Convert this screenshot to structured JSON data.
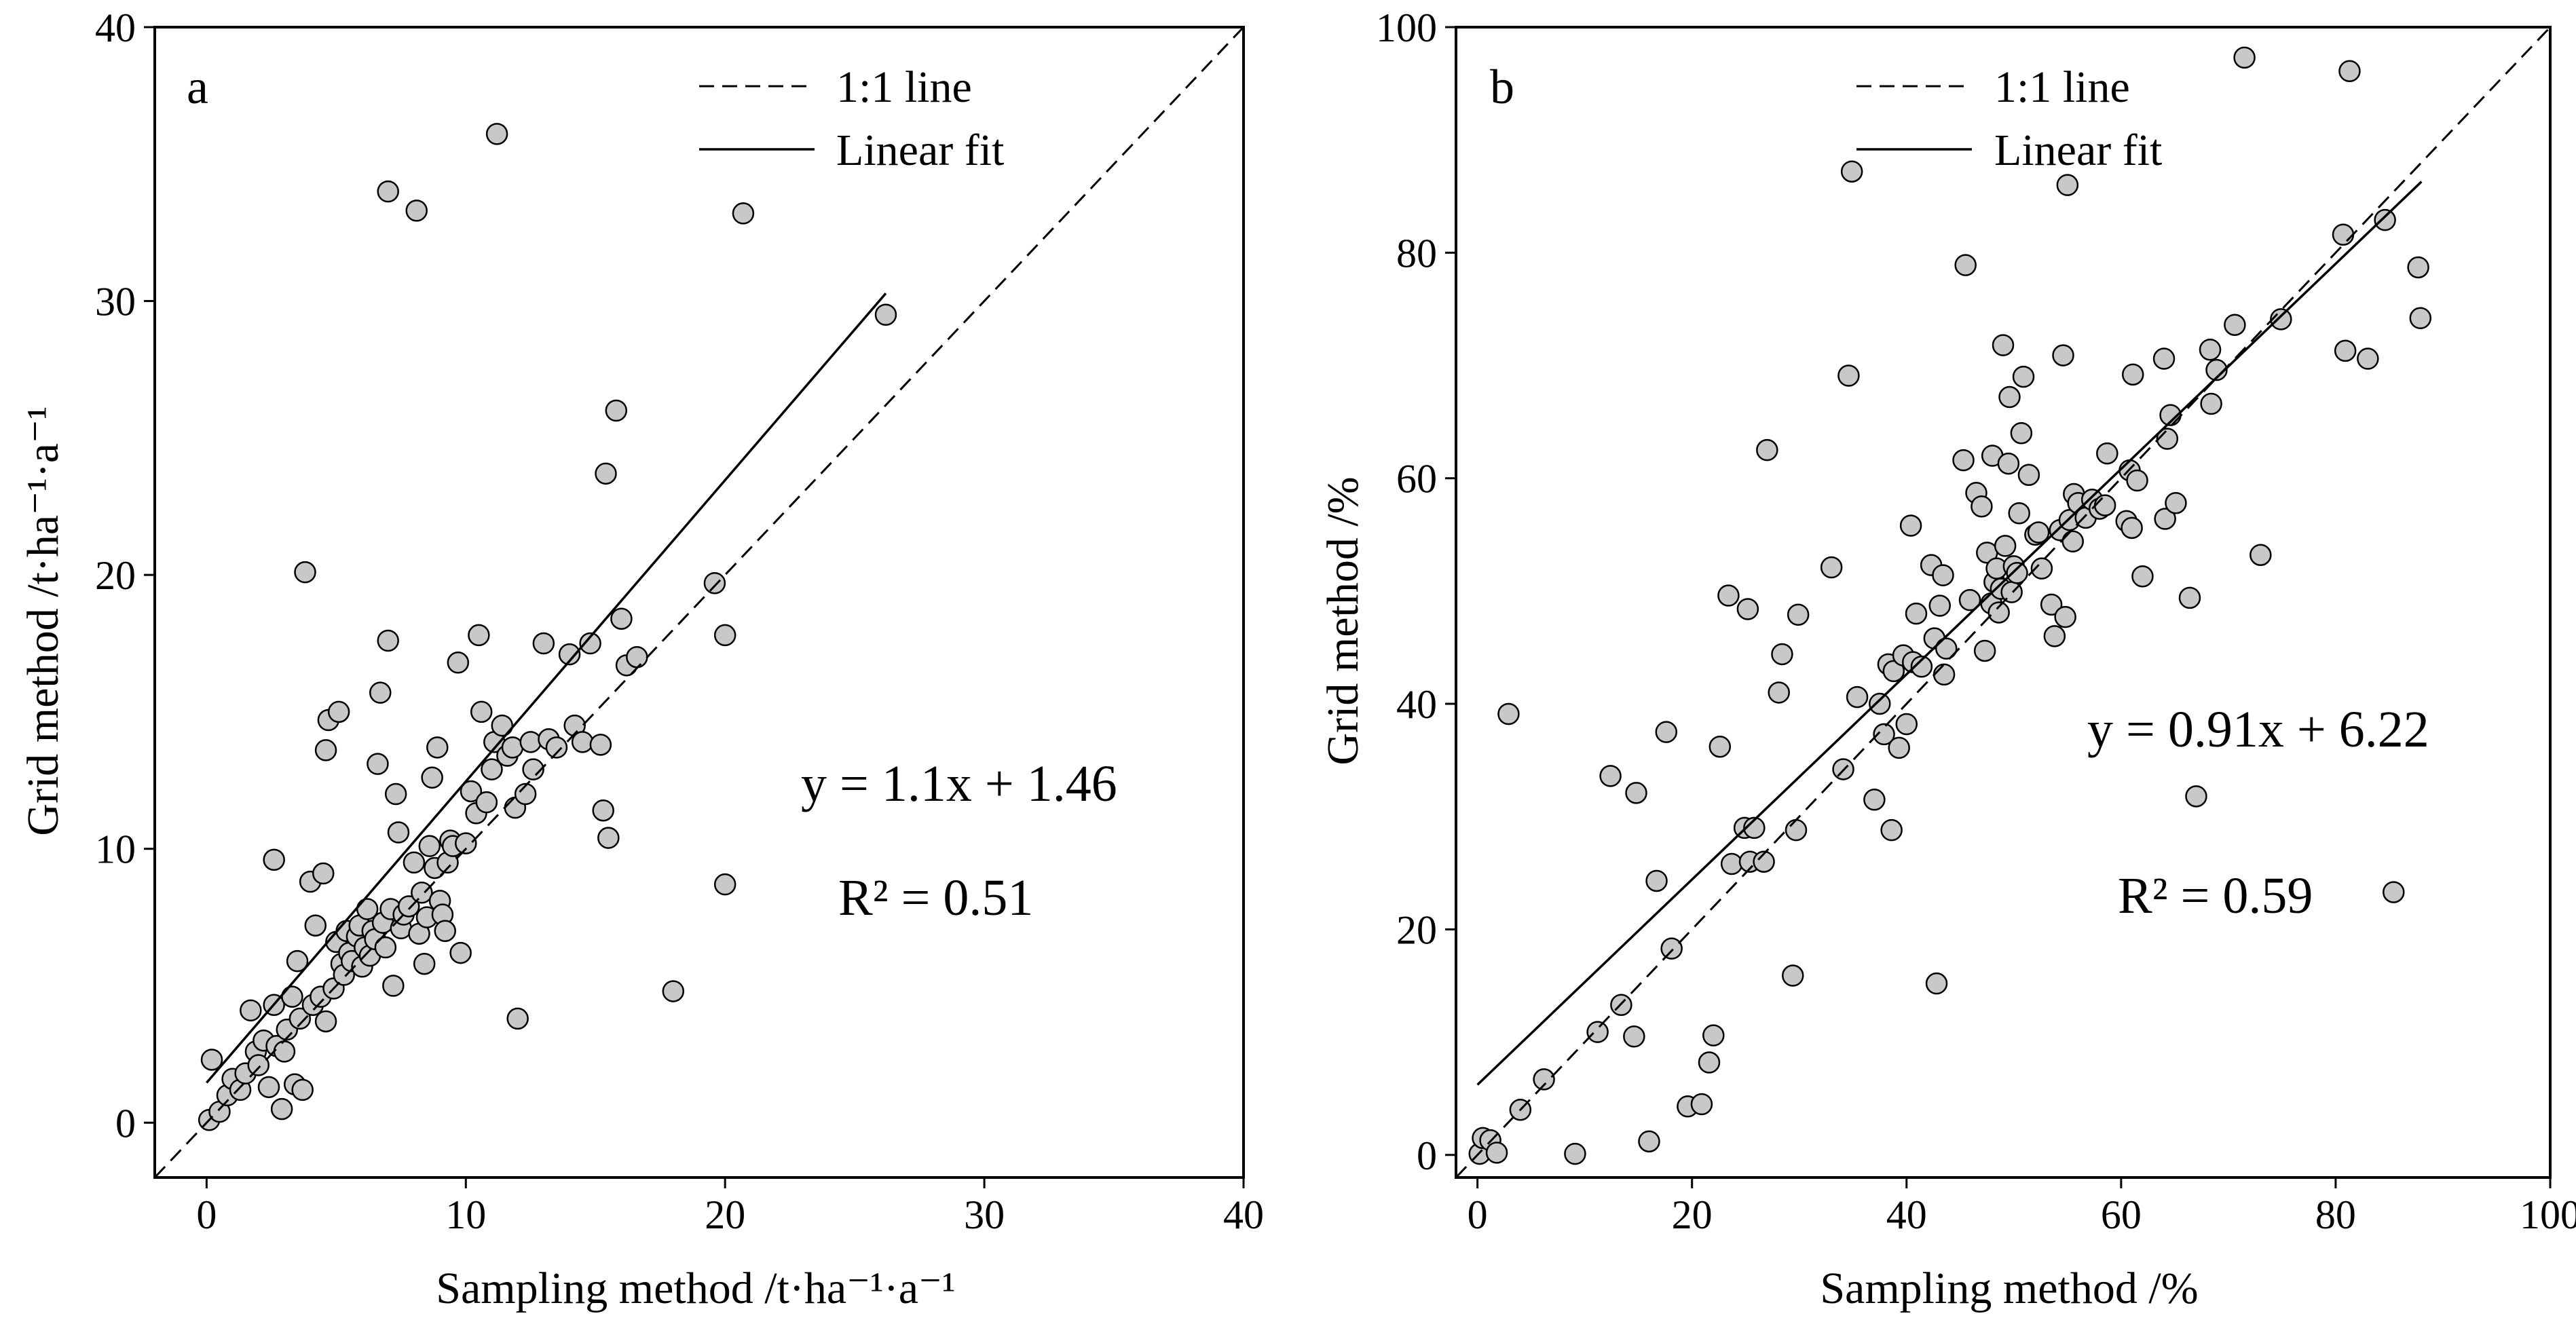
{
  "chart_data": [
    {
      "type": "scatter",
      "panel_label": "a",
      "xlabel": "Sampling method /t·ha⁻¹·a⁻¹",
      "ylabel": "Grid method /t·ha⁻¹·a⁻¹",
      "xlim": [
        -2,
        40
      ],
      "ylim": [
        -2,
        40
      ],
      "xticks": [
        0,
        10,
        20,
        30,
        40
      ],
      "yticks": [
        0,
        10,
        20,
        30,
        40
      ],
      "legend": {
        "placement": "top",
        "entries": [
          "1:1 line",
          "Linear fit"
        ]
      },
      "equation": "y = 1.1x + 1.46",
      "r2": "R² = 0.51",
      "fit": {
        "slope": 1.1,
        "intercept": 1.46,
        "x_range": [
          0,
          26.2
        ]
      },
      "one_to_one_range": [
        -2,
        40
      ],
      "points": [
        [
          0.1,
          0.1
        ],
        [
          0.2,
          2.3
        ],
        [
          0.5,
          0.4
        ],
        [
          0.8,
          1.0
        ],
        [
          1.0,
          1.6
        ],
        [
          1.3,
          1.2
        ],
        [
          1.5,
          1.8
        ],
        [
          1.7,
          4.1
        ],
        [
          1.9,
          2.6
        ],
        [
          2.0,
          2.1
        ],
        [
          2.2,
          3.0
        ],
        [
          2.4,
          1.3
        ],
        [
          2.6,
          4.3
        ],
        [
          2.6,
          9.6
        ],
        [
          2.7,
          2.8
        ],
        [
          2.9,
          0.5
        ],
        [
          3.0,
          2.6
        ],
        [
          3.1,
          3.4
        ],
        [
          3.3,
          4.6
        ],
        [
          3.4,
          1.4
        ],
        [
          3.5,
          5.9
        ],
        [
          3.6,
          3.8
        ],
        [
          3.7,
          1.2
        ],
        [
          3.8,
          20.1
        ],
        [
          4.0,
          8.8
        ],
        [
          4.1,
          4.3
        ],
        [
          4.2,
          7.2
        ],
        [
          4.4,
          4.6
        ],
        [
          4.5,
          9.1
        ],
        [
          4.6,
          3.7
        ],
        [
          4.6,
          13.6
        ],
        [
          4.7,
          14.7
        ],
        [
          4.9,
          4.9
        ],
        [
          5.0,
          6.6
        ],
        [
          5.1,
          15.0
        ],
        [
          5.2,
          5.8
        ],
        [
          5.3,
          5.4
        ],
        [
          5.4,
          7.0
        ],
        [
          5.5,
          6.2
        ],
        [
          5.6,
          5.9
        ],
        [
          5.8,
          6.8
        ],
        [
          5.9,
          7.2
        ],
        [
          6.0,
          5.7
        ],
        [
          6.1,
          6.4
        ],
        [
          6.2,
          7.8
        ],
        [
          6.3,
          6.1
        ],
        [
          6.4,
          7.0
        ],
        [
          6.5,
          6.7
        ],
        [
          6.6,
          13.1
        ],
        [
          6.7,
          15.7
        ],
        [
          6.8,
          7.3
        ],
        [
          6.9,
          6.4
        ],
        [
          7.0,
          17.6
        ],
        [
          7.0,
          34.0
        ],
        [
          7.1,
          7.8
        ],
        [
          7.2,
          5.0
        ],
        [
          7.3,
          12.0
        ],
        [
          7.4,
          10.6
        ],
        [
          7.5,
          7.1
        ],
        [
          7.6,
          7.6
        ],
        [
          7.8,
          7.9
        ],
        [
          8.0,
          9.5
        ],
        [
          8.1,
          33.3
        ],
        [
          8.2,
          6.9
        ],
        [
          8.3,
          8.4
        ],
        [
          8.4,
          5.8
        ],
        [
          8.5,
          7.5
        ],
        [
          8.6,
          10.1
        ],
        [
          8.7,
          12.6
        ],
        [
          8.8,
          9.3
        ],
        [
          8.9,
          13.7
        ],
        [
          9.0,
          8.1
        ],
        [
          9.1,
          7.6
        ],
        [
          9.2,
          7.0
        ],
        [
          9.3,
          9.5
        ],
        [
          9.4,
          10.3
        ],
        [
          9.5,
          10.1
        ],
        [
          9.7,
          16.8
        ],
        [
          9.8,
          6.2
        ],
        [
          10.0,
          10.2
        ],
        [
          10.2,
          12.1
        ],
        [
          10.4,
          11.3
        ],
        [
          10.5,
          17.8
        ],
        [
          10.6,
          15.0
        ],
        [
          10.8,
          11.7
        ],
        [
          11.0,
          12.9
        ],
        [
          11.1,
          13.9
        ],
        [
          11.2,
          36.1
        ],
        [
          11.4,
          14.5
        ],
        [
          11.6,
          13.4
        ],
        [
          11.8,
          13.7
        ],
        [
          11.9,
          11.5
        ],
        [
          12.0,
          3.8
        ],
        [
          12.3,
          12.0
        ],
        [
          12.5,
          13.9
        ],
        [
          12.6,
          12.9
        ],
        [
          13.0,
          17.5
        ],
        [
          13.2,
          14.0
        ],
        [
          13.5,
          13.7
        ],
        [
          14.0,
          17.1
        ],
        [
          14.2,
          14.5
        ],
        [
          14.5,
          13.9
        ],
        [
          14.8,
          17.5
        ],
        [
          15.2,
          13.8
        ],
        [
          15.3,
          11.4
        ],
        [
          15.4,
          23.7
        ],
        [
          15.5,
          10.4
        ],
        [
          15.8,
          26.0
        ],
        [
          16.0,
          18.4
        ],
        [
          16.2,
          16.7
        ],
        [
          16.6,
          17.0
        ],
        [
          18.0,
          4.8
        ],
        [
          19.6,
          19.7
        ],
        [
          20.0,
          17.8
        ],
        [
          20.0,
          8.7
        ],
        [
          20.7,
          33.2
        ],
        [
          26.2,
          29.5
        ]
      ]
    },
    {
      "type": "scatter",
      "panel_label": "b",
      "xlabel": "Sampling method /%",
      "ylabel": "Grid method /%",
      "xlim": [
        -2,
        100
      ],
      "ylim": [
        -2,
        100
      ],
      "xticks": [
        0,
        20,
        40,
        60,
        80,
        100
      ],
      "yticks": [
        0,
        20,
        40,
        60,
        80,
        100
      ],
      "legend": {
        "placement": "top",
        "entries": [
          "1:1 line",
          "Linear fit"
        ]
      },
      "equation": "y = 0.91x + 6.22",
      "r2": "R² = 0.59",
      "fit": {
        "slope": 0.91,
        "intercept": 6.22,
        "x_range": [
          0,
          88
        ]
      },
      "one_to_one_range": [
        -2,
        100
      ],
      "points": [
        [
          0.2,
          0.1
        ],
        [
          0.5,
          1.5
        ],
        [
          1.2,
          1.3
        ],
        [
          1.8,
          0.2
        ],
        [
          2.9,
          39.1
        ],
        [
          4.0,
          4.0
        ],
        [
          6.2,
          6.7
        ],
        [
          9.1,
          0.1
        ],
        [
          11.2,
          10.9
        ],
        [
          12.4,
          33.6
        ],
        [
          13.4,
          13.3
        ],
        [
          14.6,
          10.5
        ],
        [
          14.8,
          32.1
        ],
        [
          16.0,
          1.2
        ],
        [
          16.7,
          24.3
        ],
        [
          17.6,
          37.5
        ],
        [
          18.1,
          18.3
        ],
        [
          19.6,
          4.3
        ],
        [
          20.9,
          4.5
        ],
        [
          21.6,
          8.2
        ],
        [
          22.0,
          10.6
        ],
        [
          22.6,
          36.2
        ],
        [
          23.4,
          49.6
        ],
        [
          23.7,
          25.8
        ],
        [
          24.9,
          29.0
        ],
        [
          25.2,
          48.4
        ],
        [
          25.4,
          26.0
        ],
        [
          25.8,
          29.0
        ],
        [
          26.7,
          26.0
        ],
        [
          27.0,
          62.5
        ],
        [
          28.1,
          41.0
        ],
        [
          28.4,
          44.4
        ],
        [
          29.4,
          15.9
        ],
        [
          29.7,
          28.8
        ],
        [
          29.9,
          47.9
        ],
        [
          33.0,
          52.1
        ],
        [
          34.1,
          34.2
        ],
        [
          34.6,
          69.1
        ],
        [
          34.9,
          87.2
        ],
        [
          35.4,
          40.6
        ],
        [
          37.0,
          31.5
        ],
        [
          37.5,
          40.0
        ],
        [
          37.9,
          37.3
        ],
        [
          38.3,
          43.5
        ],
        [
          38.6,
          28.8
        ],
        [
          38.8,
          42.9
        ],
        [
          39.3,
          36.1
        ],
        [
          39.7,
          44.3
        ],
        [
          40.0,
          38.2
        ],
        [
          40.4,
          55.8
        ],
        [
          40.6,
          43.7
        ],
        [
          40.9,
          48.0
        ],
        [
          41.4,
          43.3
        ],
        [
          42.3,
          52.3
        ],
        [
          42.6,
          45.8
        ],
        [
          42.8,
          15.2
        ],
        [
          43.1,
          48.7
        ],
        [
          43.4,
          51.4
        ],
        [
          43.5,
          42.6
        ],
        [
          43.7,
          44.9
        ],
        [
          45.3,
          61.6
        ],
        [
          45.5,
          78.9
        ],
        [
          45.9,
          49.2
        ],
        [
          46.5,
          58.7
        ],
        [
          47.0,
          57.5
        ],
        [
          47.3,
          44.7
        ],
        [
          47.5,
          53.4
        ],
        [
          47.9,
          48.9
        ],
        [
          48.0,
          62.0
        ],
        [
          48.2,
          50.8
        ],
        [
          48.4,
          52.0
        ],
        [
          48.6,
          48.1
        ],
        [
          48.8,
          50.2
        ],
        [
          49.0,
          71.8
        ],
        [
          49.2,
          54.0
        ],
        [
          49.5,
          61.3
        ],
        [
          49.6,
          67.2
        ],
        [
          49.8,
          49.9
        ],
        [
          50.0,
          52.2
        ],
        [
          50.3,
          51.6
        ],
        [
          50.5,
          56.9
        ],
        [
          50.7,
          64.0
        ],
        [
          50.9,
          69.0
        ],
        [
          51.4,
          60.3
        ],
        [
          52.0,
          55.0
        ],
        [
          52.3,
          55.2
        ],
        [
          52.6,
          52.0
        ],
        [
          53.5,
          48.8
        ],
        [
          53.8,
          46.0
        ],
        [
          54.3,
          55.4
        ],
        [
          54.6,
          70.9
        ],
        [
          54.8,
          47.7
        ],
        [
          55.0,
          86.0
        ],
        [
          55.2,
          56.3
        ],
        [
          55.5,
          54.4
        ],
        [
          55.6,
          58.6
        ],
        [
          56.0,
          57.8
        ],
        [
          56.7,
          56.5
        ],
        [
          57.3,
          58.1
        ],
        [
          58.0,
          57.3
        ],
        [
          58.5,
          57.6
        ],
        [
          58.7,
          62.2
        ],
        [
          60.5,
          56.2
        ],
        [
          60.8,
          60.7
        ],
        [
          61.0,
          55.6
        ],
        [
          61.1,
          69.2
        ],
        [
          61.5,
          59.8
        ],
        [
          62.0,
          51.3
        ],
        [
          64.0,
          70.6
        ],
        [
          64.1,
          56.4
        ],
        [
          64.3,
          63.5
        ],
        [
          64.6,
          65.6
        ],
        [
          65.1,
          57.8
        ],
        [
          66.4,
          49.4
        ],
        [
          67.0,
          31.8
        ],
        [
          68.3,
          71.4
        ],
        [
          68.4,
          66.6
        ],
        [
          68.9,
          69.6
        ],
        [
          70.6,
          73.6
        ],
        [
          71.5,
          97.3
        ],
        [
          73.0,
          53.2
        ],
        [
          74.9,
          74.1
        ],
        [
          80.7,
          81.6
        ],
        [
          80.9,
          71.3
        ],
        [
          81.3,
          96.1
        ],
        [
          83.0,
          70.6
        ],
        [
          84.6,
          82.9
        ],
        [
          87.7,
          78.7
        ],
        [
          87.9,
          74.2
        ],
        [
          85.4,
          23.3
        ]
      ]
    }
  ]
}
